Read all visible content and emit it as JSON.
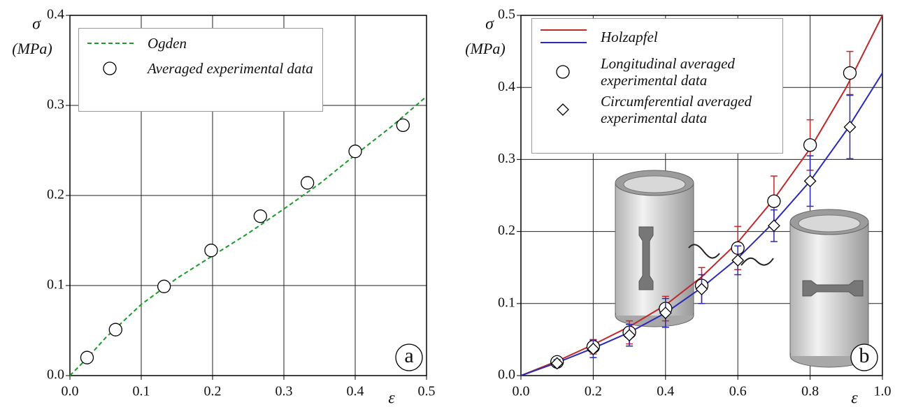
{
  "chart_data": [
    {
      "type": "line",
      "panel_label": "a",
      "y_label": "σ",
      "y_unit": "(MPa)",
      "x_label": "ε",
      "xlim": [
        0,
        0.5
      ],
      "ylim": [
        0,
        0.4
      ],
      "xticks": [
        {
          "value": 0,
          "label": "0.0"
        },
        0.1,
        0.2,
        0.3,
        0.4,
        0.5
      ],
      "yticks": [
        {
          "value": 0,
          "label": "0.0"
        },
        0.1,
        0.2,
        0.3,
        0.4
      ],
      "grid": true,
      "series": [
        {
          "name": "Ogden",
          "color": "#1a9a2a",
          "dashed": true,
          "x": [
            0,
            0.025,
            0.05,
            0.1,
            0.15,
            0.2,
            0.25,
            0.3,
            0.35,
            0.4,
            0.45,
            0.5
          ],
          "values": [
            0,
            0.02,
            0.042,
            0.079,
            0.108,
            0.133,
            0.158,
            0.185,
            0.213,
            0.245,
            0.276,
            0.31
          ]
        },
        {
          "name": "Averaged experimental data",
          "marker": "circle",
          "color": "#000000",
          "x": [
            0.024,
            0.064,
            0.132,
            0.198,
            0.267,
            0.333,
            0.4,
            0.467
          ],
          "values": [
            0.02,
            0.051,
            0.099,
            0.139,
            0.177,
            0.214,
            0.249,
            0.278
          ]
        }
      ]
    },
    {
      "type": "line",
      "panel_label": "b",
      "y_label": "σ",
      "y_unit": "(MPa)",
      "x_label": "ε",
      "xlim": [
        0,
        1
      ],
      "ylim": [
        0,
        0.5
      ],
      "xticks": [
        {
          "value": 0,
          "label": "0.0"
        },
        0.2,
        0.4,
        0.6,
        0.8,
        {
          "value": 1,
          "label": "1.0"
        }
      ],
      "yticks": [
        {
          "value": 0,
          "label": "0.0"
        },
        0.1,
        0.2,
        0.3,
        0.4,
        0.5
      ],
      "grid": true,
      "series": [
        {
          "name": "Holzapfel",
          "x": [
            0,
            0.1,
            0.2,
            0.3,
            0.4,
            0.5,
            0.6,
            0.7,
            0.8,
            0.9,
            1
          ],
          "curves": [
            {
              "color": "#c0282a",
              "values": [
                0,
                0.02,
                0.043,
                0.068,
                0.098,
                0.137,
                0.185,
                0.245,
                0.315,
                0.4,
                0.5
              ]
            },
            {
              "color": "#2a2ab8",
              "values": [
                0,
                0.018,
                0.038,
                0.06,
                0.087,
                0.122,
                0.163,
                0.213,
                0.27,
                0.34,
                0.42
              ]
            }
          ]
        },
        {
          "name": "Longitudinal averaged experimental data",
          "marker": "circle",
          "color": "#000000",
          "error_color": "#c0282a",
          "x": [
            0.1,
            0.2,
            0.3,
            0.4,
            0.5,
            0.6,
            0.7,
            0.8,
            0.91
          ],
          "values": [
            0.019,
            0.04,
            0.06,
            0.093,
            0.125,
            0.177,
            0.242,
            0.32,
            0.42
          ],
          "errors": [
            0.005,
            0.01,
            0.016,
            0.017,
            0.025,
            0.03,
            0.035,
            0.035,
            0.03
          ]
        },
        {
          "name": "Circumferential averaged experimental data",
          "marker": "diamond",
          "color": "#000000",
          "error_color": "#2a2ab8",
          "x": [
            0.1,
            0.2,
            0.3,
            0.4,
            0.5,
            0.6,
            0.7,
            0.8,
            0.91
          ],
          "values": [
            0.017,
            0.037,
            0.056,
            0.087,
            0.12,
            0.16,
            0.208,
            0.27,
            0.345
          ],
          "errors": [
            0.005,
            0.012,
            0.015,
            0.02,
            0.02,
            0.02,
            0.022,
            0.035,
            0.044
          ]
        }
      ]
    }
  ]
}
